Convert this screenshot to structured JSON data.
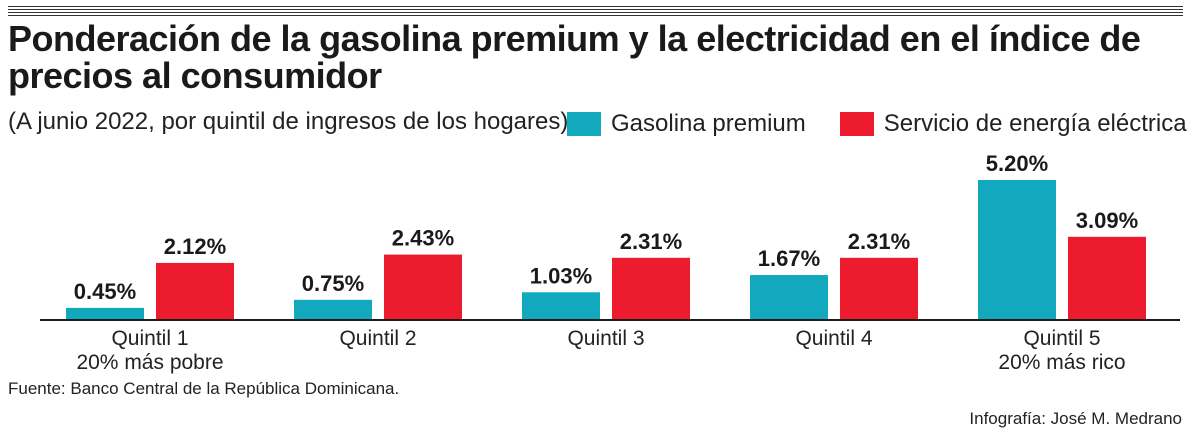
{
  "chart_data": {
    "type": "bar",
    "title": "Ponderación de la gasolina premium y la electricidad  en el índice de precios al consumidor",
    "subtitle": "(A junio 2022, por quintil de ingresos de los hogares)",
    "categories": [
      [
        "Quintil 1",
        "20% más pobre"
      ],
      [
        "Quintil 2"
      ],
      [
        "Quintil 3"
      ],
      [
        "Quintil 4"
      ],
      [
        "Quintil 5",
        "20% más rico"
      ]
    ],
    "series": [
      {
        "name": "Gasolina premium",
        "color": "#12a9bf",
        "values": [
          0.45,
          0.75,
          1.03,
          1.67,
          5.2
        ],
        "labels": [
          "0.45%",
          "0.75%",
          "1.03%",
          "1.67%",
          "5.20%"
        ]
      },
      {
        "name": "Servicio de energía eléctrica",
        "color": "#ec1c2e",
        "values": [
          2.12,
          2.43,
          2.31,
          2.31,
          3.09
        ],
        "labels": [
          "2.12%",
          "2.43%",
          "2.31%",
          "2.31%",
          "3.09%"
        ]
      }
    ],
    "ylim": [
      0,
      5.2
    ],
    "grid": false,
    "legend": "top-right",
    "source": "Fuente: Banco Central de la República Dominicana.",
    "credit": "Infografía: José M. Medrano"
  }
}
